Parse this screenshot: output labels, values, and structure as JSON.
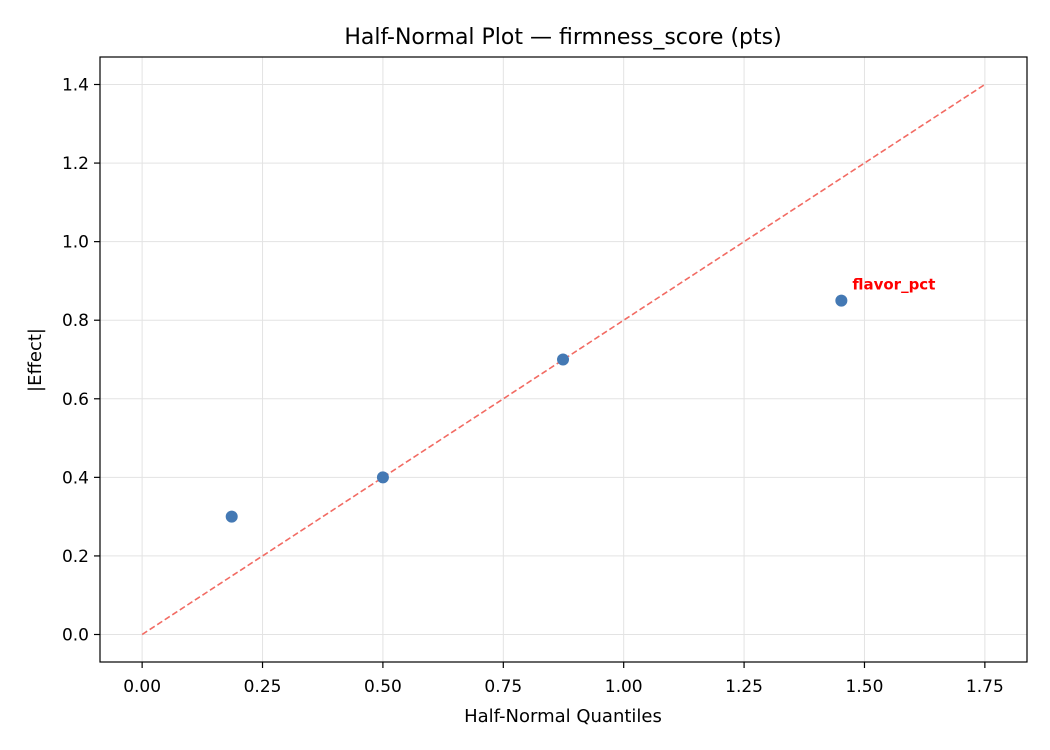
{
  "chart_data": {
    "type": "scatter",
    "title": "Half-Normal Plot — firmness_score (pts)",
    "xlabel": "Half-Normal Quantiles",
    "ylabel": "|Effect|",
    "xlim": [
      -0.0875,
      1.8375
    ],
    "ylim": [
      -0.07,
      1.47
    ],
    "xticks": [
      0.0,
      0.25,
      0.5,
      0.75,
      1.0,
      1.25,
      1.5,
      1.75
    ],
    "xtick_labels": [
      "0.00",
      "0.25",
      "0.50",
      "0.75",
      "1.00",
      "1.25",
      "1.50",
      "1.75"
    ],
    "yticks": [
      0.0,
      0.2,
      0.4,
      0.6,
      0.8,
      1.0,
      1.2,
      1.4
    ],
    "ytick_labels": [
      "0.0",
      "0.2",
      "0.4",
      "0.6",
      "0.8",
      "1.0",
      "1.2",
      "1.4"
    ],
    "grid": true,
    "points": [
      {
        "x": 0.186,
        "y": 0.3
      },
      {
        "x": 0.5,
        "y": 0.4
      },
      {
        "x": 0.874,
        "y": 0.7
      },
      {
        "x": 1.452,
        "y": 0.85
      }
    ],
    "reference_line": {
      "x": [
        0.0,
        1.75
      ],
      "y": [
        0.0,
        1.4
      ],
      "style": "dashed",
      "color": "#f26b63"
    },
    "annotations": [
      {
        "text": "flavor_pct",
        "x": 1.452,
        "y": 0.85,
        "color": "#ff0000"
      }
    ],
    "point_color": "#4479b4"
  }
}
